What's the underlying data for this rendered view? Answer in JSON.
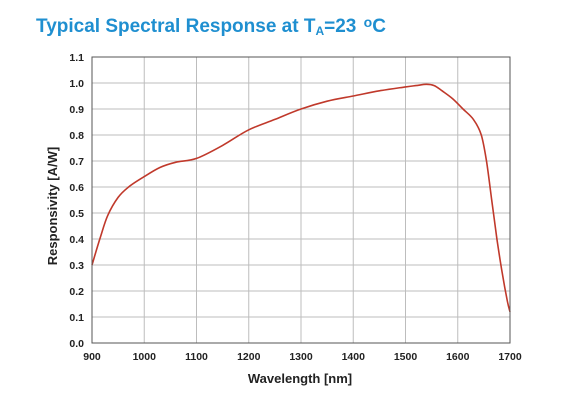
{
  "chart_data": {
    "type": "line",
    "title": {
      "main": "Typical Spectral Response at T",
      "sub": "A",
      "tail": "=23 ",
      "deg": "o",
      "unit": "C"
    },
    "xlabel": "Wavelength [nm]",
    "ylabel": "Responsivity [A/W]",
    "xlim": [
      900,
      1700
    ],
    "ylim": [
      0.0,
      1.1
    ],
    "xticks": [
      "900",
      "1000",
      "1100",
      "1200",
      "1300",
      "1400",
      "1500",
      "1600",
      "1700"
    ],
    "yticks": [
      "0.0",
      "0.1",
      "0.2",
      "0.3",
      "0.4",
      "0.5",
      "0.6",
      "0.7",
      "0.8",
      "0.9",
      "1.0",
      "1.1"
    ],
    "grid": true,
    "line_color": "#c0392b",
    "title_color": "#1f8fd0",
    "series": [
      {
        "x": [
          900,
          915,
          930,
          950,
          970,
          1000,
          1030,
          1060,
          1100,
          1150,
          1200,
          1250,
          1300,
          1350,
          1400,
          1450,
          1500,
          1520,
          1540,
          1555,
          1570,
          1590,
          1610,
          1630,
          1645,
          1655,
          1665,
          1675,
          1685,
          1695,
          1700
        ],
        "y": [
          0.3,
          0.4,
          0.49,
          0.56,
          0.6,
          0.64,
          0.675,
          0.695,
          0.71,
          0.76,
          0.82,
          0.86,
          0.9,
          0.93,
          0.95,
          0.97,
          0.985,
          0.99,
          0.995,
          0.99,
          0.97,
          0.94,
          0.9,
          0.86,
          0.8,
          0.7,
          0.55,
          0.4,
          0.27,
          0.16,
          0.12
        ]
      }
    ]
  }
}
